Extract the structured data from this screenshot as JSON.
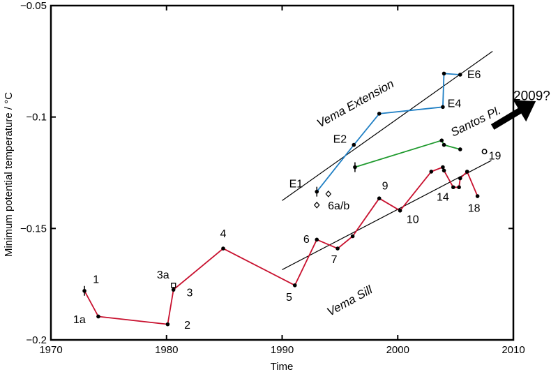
{
  "chart_data": {
    "type": "line",
    "title": "",
    "xlabel": "Time",
    "ylabel": "Minimum potential temperature  / °C",
    "xlim": [
      1970,
      2010
    ],
    "ylim": [
      -0.2,
      -0.05
    ],
    "xticks": [
      1970,
      1980,
      1990,
      2000,
      2010
    ],
    "xtick_labels": [
      "1970",
      "1980",
      "1990",
      "2000",
      "2010"
    ],
    "yticks": [
      -0.2,
      -0.15,
      -0.1,
      -0.05
    ],
    "ytick_labels": [
      "-0.2",
      "-0.15",
      "-0.1",
      "-0.05"
    ],
    "grid": false,
    "colors": {
      "vema_sill": "#c8102e",
      "vema_extension": "#1f7fc4",
      "santos": "#1f9a2e",
      "trend": "#000000"
    },
    "series": [
      {
        "name": "Vema Sill",
        "color": "#c8102e",
        "points": [
          {
            "x": 1972.9,
            "y": -0.178
          },
          {
            "x": 1974.1,
            "y": -0.1895
          },
          {
            "x": 1980.1,
            "y": -0.193
          },
          {
            "x": 1980.6,
            "y": -0.1775
          },
          {
            "x": 1984.9,
            "y": -0.159
          },
          {
            "x": 1991.1,
            "y": -0.1755
          },
          {
            "x": 1993.0,
            "y": -0.155
          },
          {
            "x": 1994.8,
            "y": -0.159
          },
          {
            "x": 1996.1,
            "y": -0.1535
          },
          {
            "x": 1998.4,
            "y": -0.1365
          },
          {
            "x": 2000.2,
            "y": -0.142
          },
          {
            "x": 2002.9,
            "y": -0.1245
          },
          {
            "x": 2003.9,
            "y": -0.1225
          },
          {
            "x": 2004.0,
            "y": -0.124
          },
          {
            "x": 2004.8,
            "y": -0.1315
          },
          {
            "x": 2005.3,
            "y": -0.1315
          },
          {
            "x": 2005.4,
            "y": -0.1275
          },
          {
            "x": 2006.0,
            "y": -0.1245
          },
          {
            "x": 2006.9,
            "y": -0.1355
          }
        ]
      },
      {
        "name": "Vema Extension",
        "color": "#1f7fc4",
        "points": [
          {
            "x": 1993.0,
            "y": -0.1335
          },
          {
            "x": 1996.2,
            "y": -0.1125
          },
          {
            "x": 1998.4,
            "y": -0.0985
          },
          {
            "x": 2003.9,
            "y": -0.0955
          },
          {
            "x": 2004.0,
            "y": -0.0805
          },
          {
            "x": 2005.4,
            "y": -0.081
          }
        ]
      },
      {
        "name": "Santos Plateau",
        "color": "#1f9a2e",
        "points": [
          {
            "x": 1996.3,
            "y": -0.1225
          },
          {
            "x": 2003.8,
            "y": -0.1105
          },
          {
            "x": 2004.0,
            "y": -0.1125
          },
          {
            "x": 2005.4,
            "y": -0.1145
          }
        ]
      }
    ],
    "trend_lines": [
      {
        "name": "Vema Extension trend",
        "x1": 1990,
        "y1": -0.1375,
        "x2": 2008.2,
        "y2": -0.0705
      },
      {
        "name": "Vema Sill trend",
        "x1": 1990,
        "y1": -0.1685,
        "x2": 2008.1,
        "y2": -0.1195
      }
    ],
    "open_markers": [
      {
        "shape": "square",
        "x": 1980.6,
        "y": -0.1755
      },
      {
        "shape": "diamond",
        "x": 1993.0,
        "y": -0.1395
      },
      {
        "shape": "diamond",
        "x": 1994.0,
        "y": -0.1345
      },
      {
        "shape": "circle",
        "x": 2007.5,
        "y": -0.1155
      }
    ],
    "error_bars": [
      {
        "x": 1972.9,
        "y": -0.178
      },
      {
        "x": 1993.0,
        "y": -0.1335
      },
      {
        "x": 1996.3,
        "y": -0.1225
      }
    ],
    "point_labels": [
      {
        "text": "1",
        "x": 1973.9,
        "y": -0.1745,
        "anchor": "middle"
      },
      {
        "text": "1a",
        "x": 1973.0,
        "y": -0.1925,
        "anchor": "end"
      },
      {
        "text": "2",
        "x": 1981.8,
        "y": -0.195,
        "anchor": "middle"
      },
      {
        "text": "3",
        "x": 1982.0,
        "y": -0.1805,
        "anchor": "middle"
      },
      {
        "text": "3a",
        "x": 1979.7,
        "y": -0.1725,
        "anchor": "middle"
      },
      {
        "text": "4",
        "x": 1984.9,
        "y": -0.154,
        "anchor": "middle"
      },
      {
        "text": "5",
        "x": 1990.6,
        "y": -0.1825,
        "anchor": "middle"
      },
      {
        "text": "6",
        "x": 1992.1,
        "y": -0.1565,
        "anchor": "middle"
      },
      {
        "text": "7",
        "x": 1994.5,
        "y": -0.1655,
        "anchor": "middle"
      },
      {
        "text": "9",
        "x": 1998.9,
        "y": -0.1325,
        "anchor": "middle"
      },
      {
        "text": "10",
        "x": 2001.3,
        "y": -0.1475,
        "anchor": "middle"
      },
      {
        "text": "14",
        "x": 2003.9,
        "y": -0.1375,
        "anchor": "middle"
      },
      {
        "text": "18",
        "x": 2006.6,
        "y": -0.1425,
        "anchor": "middle"
      },
      {
        "text": "19",
        "x": 2008.4,
        "y": -0.119,
        "anchor": "middle"
      },
      {
        "text": "6a/b",
        "x": 1994.9,
        "y": -0.1415,
        "anchor": "middle"
      },
      {
        "text": "E1",
        "x": 1991.2,
        "y": -0.1315,
        "anchor": "middle"
      },
      {
        "text": "E2",
        "x": 1995.0,
        "y": -0.1115,
        "anchor": "middle"
      },
      {
        "text": "E4",
        "x": 2004.9,
        "y": -0.0955,
        "anchor": "middle"
      },
      {
        "text": "E6",
        "x": 2006.6,
        "y": -0.0825,
        "anchor": "middle"
      }
    ],
    "annotations": [
      {
        "text": "Vema Extension",
        "x": 1996.5,
        "y": -0.0955,
        "rotate": -29,
        "anchor": "middle",
        "kind": "region"
      },
      {
        "text": "Santos Pl.",
        "x": 2006.9,
        "y": -0.1035,
        "rotate": -26,
        "anchor": "middle",
        "kind": "region"
      },
      {
        "text": "Vema Sill",
        "x": 1996.0,
        "y": -0.184,
        "rotate": -29,
        "anchor": "middle",
        "kind": "region"
      },
      {
        "text": "2009?",
        "x": 2010.0,
        "y": -0.0925,
        "rotate": 0,
        "anchor": "start",
        "kind": "callout"
      }
    ],
    "arrow": {
      "x1": 2008.2,
      "y1": -0.1045,
      "x2": 2011.1,
      "y2": -0.0955
    }
  }
}
